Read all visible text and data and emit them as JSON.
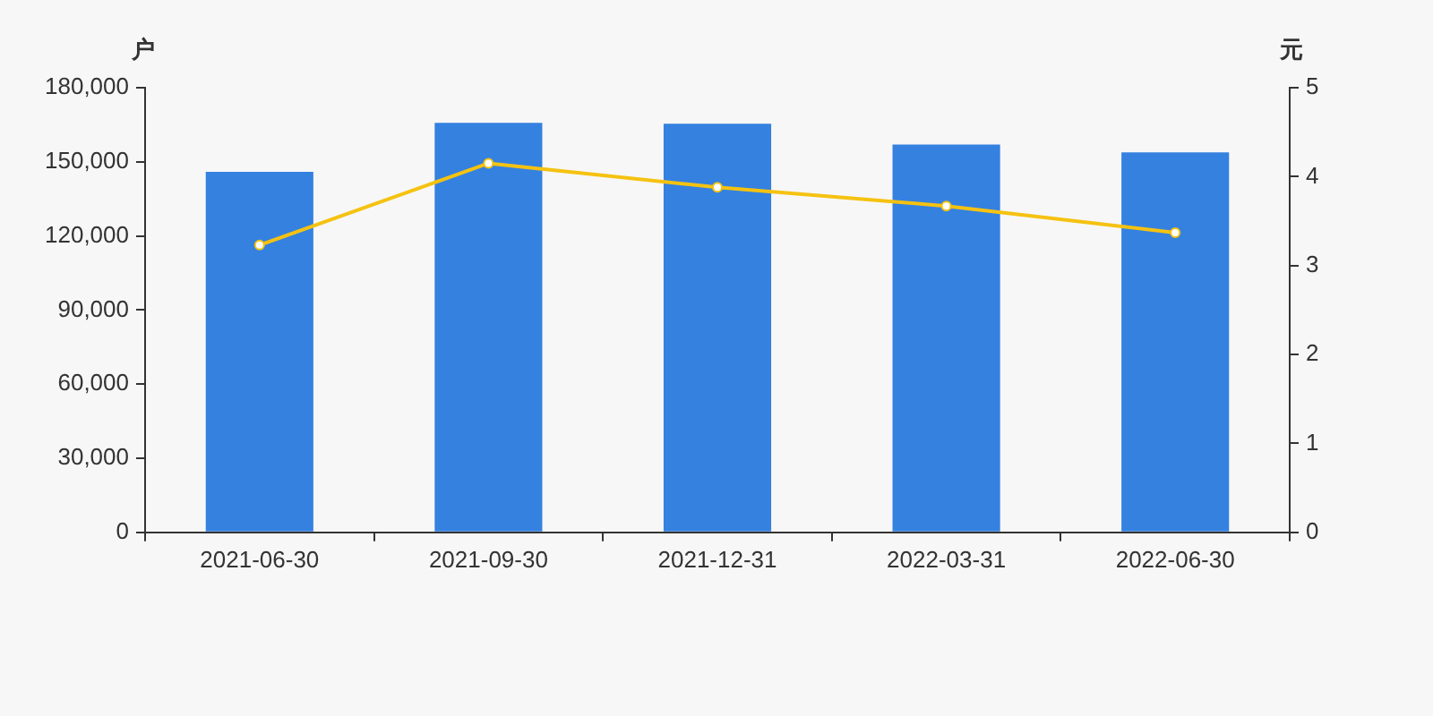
{
  "chart_data": {
    "type": "bar",
    "ylabel": "户",
    "y2label": "元",
    "categories": [
      "2021-06-30",
      "2021-09-30",
      "2021-12-31",
      "2022-03-31",
      "2022-06-30"
    ],
    "series": [
      {
        "color": "#3481e0",
        "values": [
          145900,
          165800,
          165400,
          157000,
          153800
        ]
      },
      {
        "type": "line",
        "axis": "y2",
        "color": "#f5c211",
        "marker": "circle",
        "values": [
          3.23,
          4.15,
          3.88,
          3.67,
          3.37
        ]
      }
    ],
    "ylim": [
      0,
      180000
    ],
    "yticks": [
      {
        "value": 0,
        "label": "0"
      },
      {
        "value": 30000,
        "label": "30,000"
      },
      {
        "value": 60000,
        "label": "60,000"
      },
      {
        "value": 90000,
        "label": "90,000"
      },
      {
        "value": 120000,
        "label": "120,000"
      },
      {
        "value": 150000,
        "label": "150,000"
      },
      {
        "value": 180000,
        "label": "180,000"
      }
    ],
    "y2lim": [
      0,
      5
    ],
    "y2ticks": [
      0,
      1,
      2,
      3,
      4,
      5
    ],
    "grid": false,
    "legend": false
  }
}
